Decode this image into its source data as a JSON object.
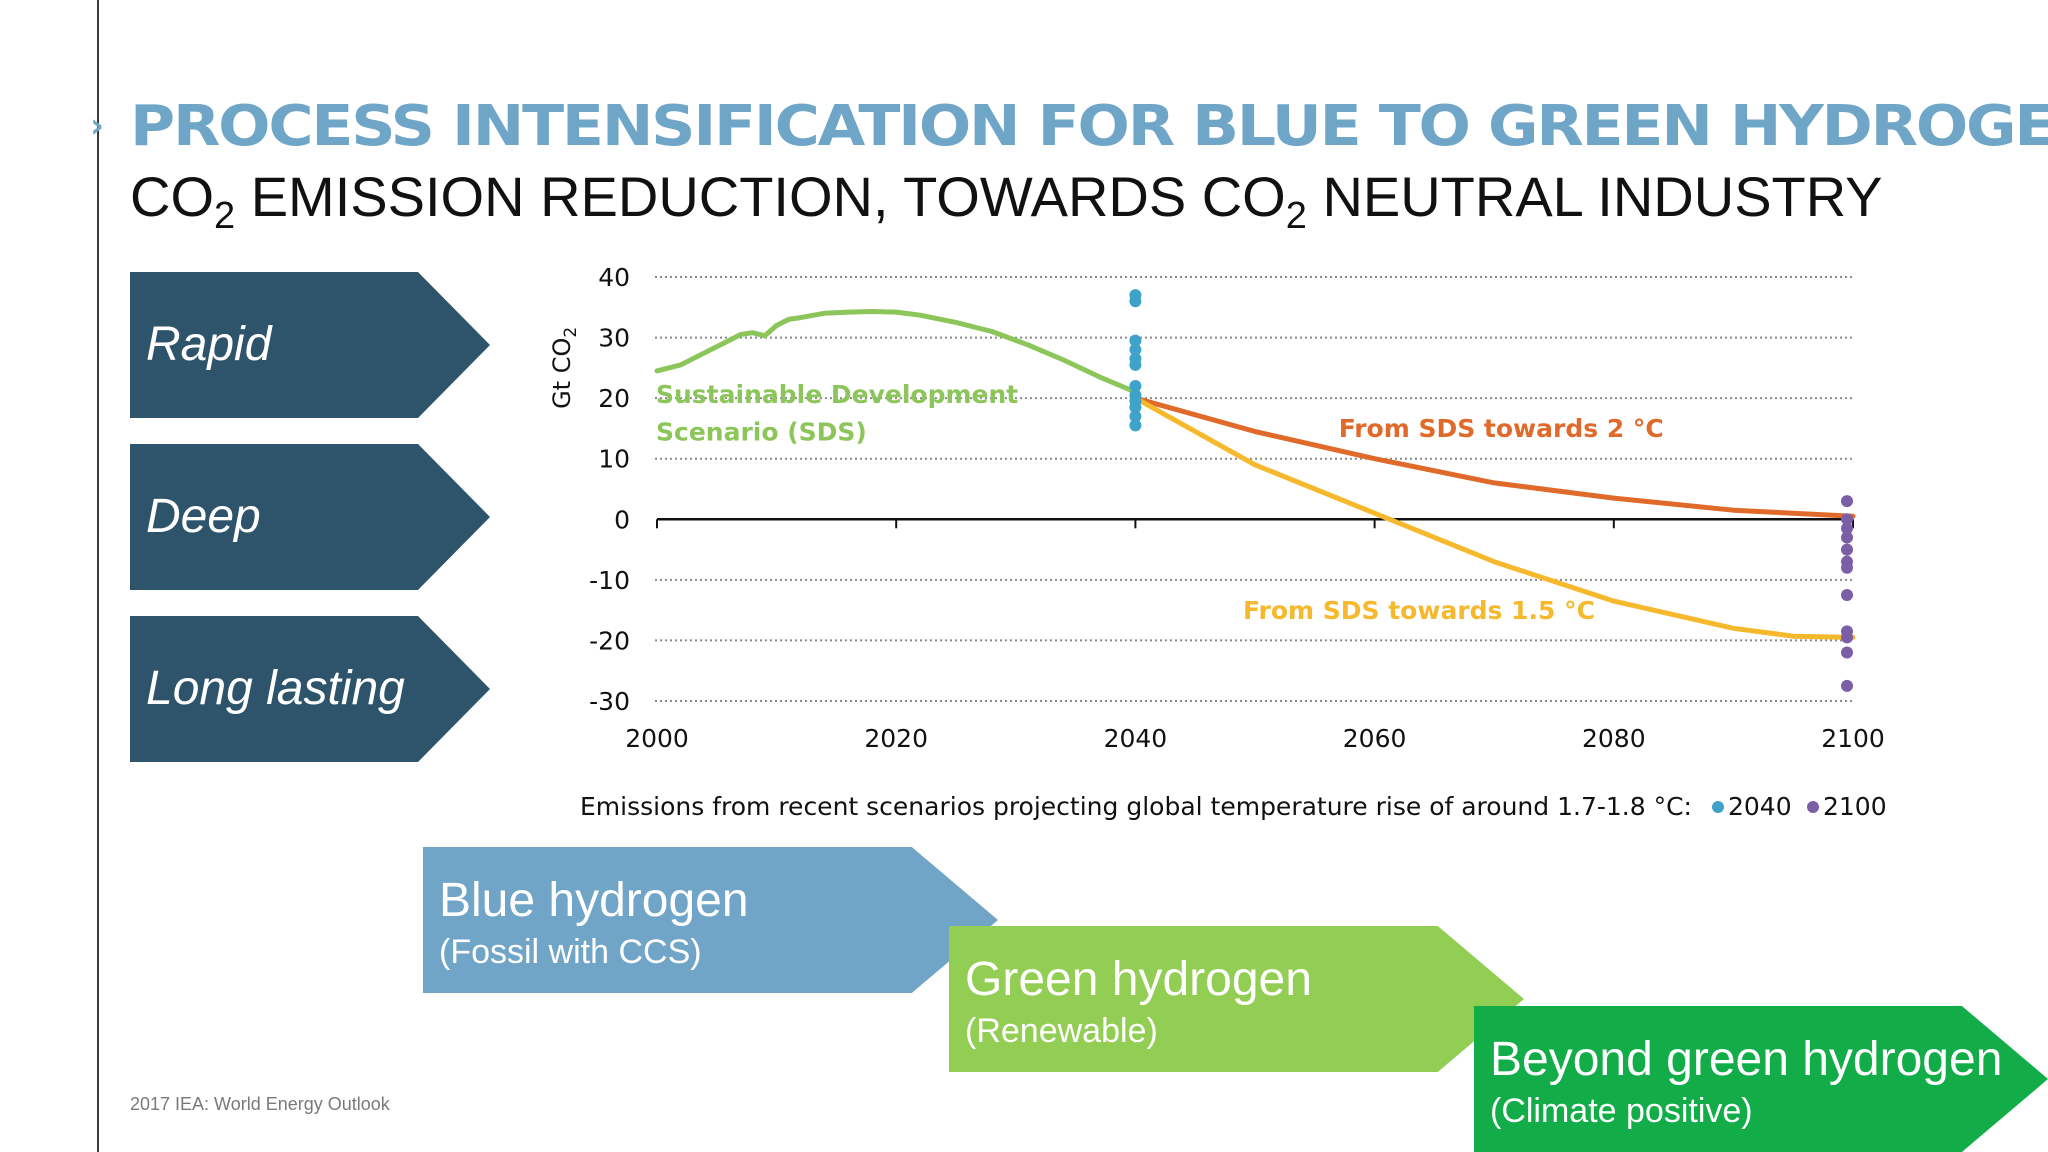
{
  "slide": {
    "title": "PROCESS INTENSIFICATION FOR BLUE TO GREEN HYDROGEN",
    "subtitle_parts": [
      "CO",
      "2",
      " EMISSION REDUCTION, TOWARDS CO",
      "2",
      " NEUTRAL INDUSTRY"
    ],
    "source": "2017 IEA: World Energy Outlook"
  },
  "left_arrows": [
    {
      "label": "Rapid"
    },
    {
      "label": "Deep"
    },
    {
      "label": "Long lasting"
    }
  ],
  "hydrogen_arrows": [
    {
      "title": "Blue hydrogen",
      "subtitle": "(Fossil with CCS)",
      "color": "#71a5c7"
    },
    {
      "title": "Green hydrogen",
      "subtitle": "(Renewable)",
      "color": "#92cd54"
    },
    {
      "title": "Beyond green hydrogen",
      "subtitle": "(Climate positive)",
      "color": "#12ad48"
    }
  ],
  "colors": {
    "dark_arrow": "#2e546b",
    "sds": "#8cc55a",
    "sds_2c": "#e06a2a",
    "sds_15c": "#f6b92d",
    "dot_2040": "#3fa3c9",
    "dot_2100": "#7a5ea6",
    "title_blue": "#6fa6c8"
  },
  "chart_data": {
    "type": "line",
    "ylabel_parts": [
      "Gt CO",
      "2"
    ],
    "x_ticks": [
      2000,
      2020,
      2040,
      2060,
      2080,
      2100
    ],
    "y_ticks": [
      40,
      30,
      20,
      10,
      0,
      -10,
      -20,
      -30
    ],
    "xlim": [
      2000,
      2100
    ],
    "ylim": [
      -30,
      40
    ],
    "grid": "horizontal dotted",
    "series": [
      {
        "name": "Sustainable Development Scenario (SDS)",
        "label_lines": [
          "Sustainable Development",
          "Scenario (SDS)"
        ],
        "color": "#8cc55a",
        "x": [
          2000,
          2002,
          2004,
          2006,
          2007,
          2008,
          2009,
          2010,
          2011,
          2012,
          2014,
          2016,
          2018,
          2020,
          2022,
          2025,
          2028,
          2031,
          2034,
          2037,
          2040
        ],
        "y": [
          24.5,
          25.5,
          27.5,
          29.5,
          30.5,
          30.8,
          30.3,
          32.0,
          33.0,
          33.3,
          34.0,
          34.2,
          34.3,
          34.2,
          33.7,
          32.5,
          31.0,
          28.8,
          26.3,
          23.5,
          21.0
        ]
      },
      {
        "name": "From SDS towards 2 °C",
        "color": "#e06a2a",
        "x": [
          2040,
          2050,
          2060,
          2070,
          2080,
          2090,
          2100
        ],
        "y": [
          20.0,
          14.5,
          10.0,
          6.0,
          3.5,
          1.5,
          0.5
        ]
      },
      {
        "name": "From SDS towards 1.5 °C",
        "color": "#f6b92d",
        "x": [
          2040,
          2050,
          2060,
          2070,
          2080,
          2090,
          2095,
          2100
        ],
        "y": [
          20.0,
          9.0,
          1.0,
          -7.0,
          -13.5,
          -18.0,
          -19.3,
          -19.5
        ]
      }
    ],
    "scatter_2040": {
      "name": "2040",
      "x": 2040,
      "y": [
        37.0,
        36.0,
        29.5,
        28.0,
        26.5,
        25.5,
        22.0,
        20.5,
        19.5,
        18.5,
        17.0,
        15.5
      ]
    },
    "scatter_2100": {
      "name": "2100",
      "x": 2100,
      "y": [
        3.0,
        0.0,
        -1.5,
        -3.0,
        -5.0,
        -7.0,
        -8.0,
        -12.5,
        -18.5,
        -19.5,
        -22.0,
        -27.5
      ]
    },
    "footnote": "Emissions from recent scenarios projecting global temperature rise of around 1.7-1.8 °C:",
    "legend": [
      {
        "label": "2040",
        "color": "#3fa3c9"
      },
      {
        "label": "2100",
        "color": "#7a5ea6"
      }
    ]
  }
}
